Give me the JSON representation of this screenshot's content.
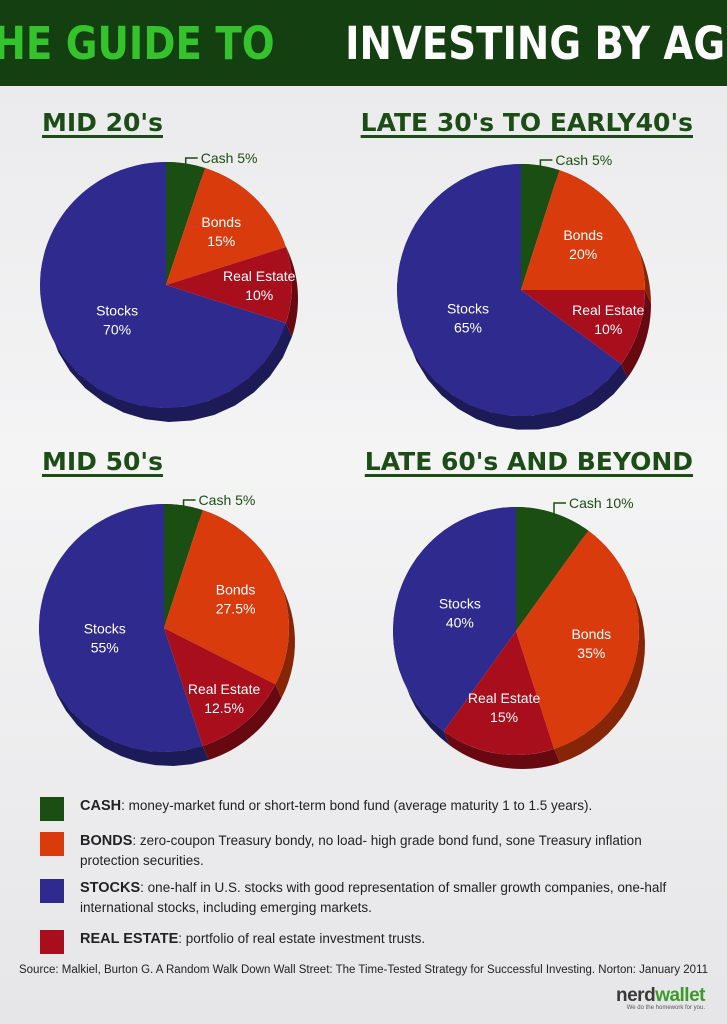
{
  "header": {
    "title_part1": "THE GUIDE TO",
    "title_part2": "INVESTING BY AGE"
  },
  "colors": {
    "cash": "#1b4e13",
    "bonds": "#d93b0c",
    "stocks": "#2f2a8e",
    "real_estate": "#a80e1c"
  },
  "chart_data": [
    {
      "type": "pie",
      "title": "MID 20's",
      "slices": [
        {
          "label": "Cash",
          "value": 5,
          "display": "5%",
          "category": "cash"
        },
        {
          "label": "Bonds",
          "value": 15,
          "display": "15%",
          "category": "bonds"
        },
        {
          "label": "Real Estate",
          "value": 10,
          "display": "10%",
          "category": "real_estate"
        },
        {
          "label": "Stocks",
          "value": 70,
          "display": "70%",
          "category": "stocks"
        }
      ]
    },
    {
      "type": "pie",
      "title": "LATE 30's TO EARLY40's",
      "slices": [
        {
          "label": "Cash",
          "value": 5,
          "display": "5%",
          "category": "cash"
        },
        {
          "label": "Bonds",
          "value": 20,
          "display": "20%",
          "category": "bonds"
        },
        {
          "label": "Real Estate",
          "value": 10,
          "display": "10%",
          "category": "real_estate"
        },
        {
          "label": "Stocks",
          "value": 65,
          "display": "65%",
          "category": "stocks"
        }
      ]
    },
    {
      "type": "pie",
      "title": "MID 50's",
      "slices": [
        {
          "label": "Cash",
          "value": 5,
          "display": "5%",
          "category": "cash"
        },
        {
          "label": "Bonds",
          "value": 27.5,
          "display": "27.5%",
          "category": "bonds"
        },
        {
          "label": "Real Estate",
          "value": 12.5,
          "display": "12.5%",
          "category": "real_estate"
        },
        {
          "label": "Stocks",
          "value": 55,
          "display": "55%",
          "category": "stocks"
        }
      ]
    },
    {
      "type": "pie",
      "title": "LATE 60's AND BEYOND",
      "slices": [
        {
          "label": "Cash",
          "value": 10,
          "display": "10%",
          "category": "cash"
        },
        {
          "label": "Bonds",
          "value": 35,
          "display": "35%",
          "category": "bonds"
        },
        {
          "label": "Real Estate",
          "value": 15,
          "display": "15%",
          "category": "real_estate"
        },
        {
          "label": "Stocks",
          "value": 40,
          "display": "40%",
          "category": "stocks"
        }
      ]
    }
  ],
  "legend": [
    {
      "category": "cash",
      "term": "CASH",
      "description": ": money-market fund or short-term bond fund (average maturity 1 to 1.5 years)."
    },
    {
      "category": "bonds",
      "term": "BONDS",
      "description": ": zero-coupon Treasury bondy, no load- high grade bond fund, sone Treasury inflation protection securities."
    },
    {
      "category": "stocks",
      "term": "STOCKS",
      "description": ": one-half in U.S. stocks with good representation of smaller growth companies, one-half international stocks, including emerging markets."
    },
    {
      "category": "real_estate",
      "term": "REAL ESTATE",
      "description": ": portfolio of real estate investment trusts."
    }
  ],
  "source": "Source: Malkiel, Burton G.  A Random Walk Down Wall Street: The Time-Tested Strategy for Successful Investing.  Norton: January 2011",
  "logo": {
    "part1": "nerd",
    "part2": "wallet",
    "tagline": "We do the homework for you."
  }
}
